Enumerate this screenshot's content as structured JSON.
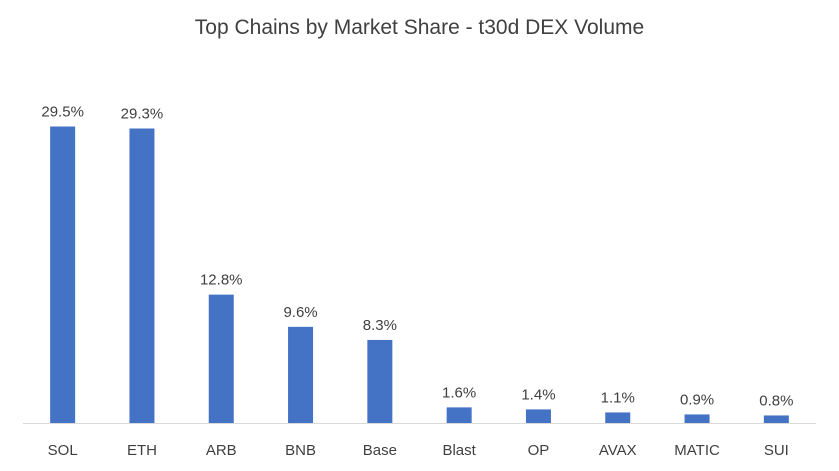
{
  "chart_data": {
    "type": "bar",
    "title": "Top Chains by Market Share - t30d DEX Volume",
    "xlabel": "",
    "ylabel": "",
    "categories": [
      "SOL",
      "ETH",
      "ARB",
      "BNB",
      "Base",
      "Blast",
      "OP",
      "AVAX",
      "MATIC",
      "SUI"
    ],
    "values": [
      29.5,
      29.3,
      12.8,
      9.6,
      8.3,
      1.6,
      1.4,
      1.1,
      0.9,
      0.8
    ],
    "data_labels": [
      "29.5%",
      "29.3%",
      "12.8%",
      "9.6%",
      "8.3%",
      "1.6%",
      "1.4%",
      "1.1%",
      "0.9%",
      "0.8%"
    ],
    "value_unit": "%",
    "ylim": [
      0,
      29.5
    ],
    "grid": false,
    "legend": "none",
    "colors": {
      "bar": "#4472C4",
      "axis_line": "#d9d9d9",
      "text": "#404040"
    }
  }
}
